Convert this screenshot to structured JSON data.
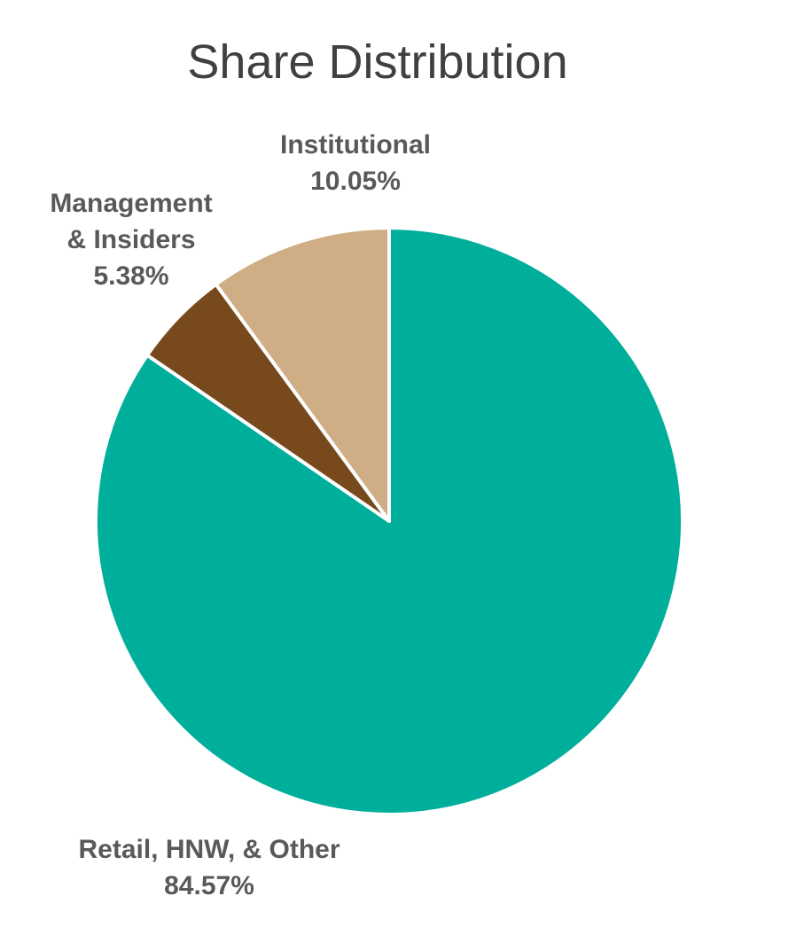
{
  "chart_data": {
    "type": "pie",
    "title": "Share Distribution",
    "start_angle_deg": 0,
    "direction": "clockwise",
    "slices": [
      {
        "name": "Retail, HNW, & Other",
        "value": 84.57,
        "value_label": "84.57%",
        "label_lines": [
          "Retail, HNW, & Other"
        ],
        "color": "#00AF9B"
      },
      {
        "name": "Management & Insiders",
        "value": 5.38,
        "value_label": "5.38%",
        "label_lines": [
          "Management",
          "& Insiders"
        ],
        "color": "#77491D"
      },
      {
        "name": "Institutional",
        "value": 10.05,
        "value_label": "10.05%",
        "label_lines": [
          "Institutional"
        ],
        "color": "#CFAE85"
      }
    ],
    "legend": "none",
    "slice_border_color": "#FFFFFF"
  }
}
